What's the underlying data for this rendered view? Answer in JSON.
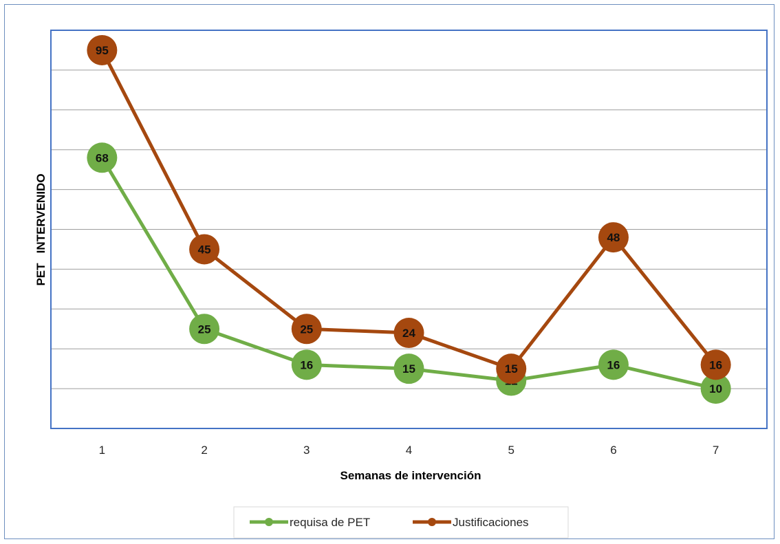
{
  "chart_data": {
    "type": "line",
    "title": "",
    "xlabel": "Semanas  de intervención",
    "ylabel": "PET   INTERVENIDO",
    "categories": [
      "1",
      "2",
      "3",
      "4",
      "5",
      "6",
      "7"
    ],
    "ylim": [
      0,
      100
    ],
    "grid": true,
    "legend_position": "bottom",
    "series": [
      {
        "name": "requisa de PET",
        "color": "#70ad47",
        "values": [
          68,
          25,
          16,
          15,
          12,
          16,
          10
        ]
      },
      {
        "name": "Justificaciones",
        "color": "#a5480f",
        "values": [
          95,
          45,
          25,
          24,
          15,
          48,
          16
        ]
      }
    ]
  }
}
